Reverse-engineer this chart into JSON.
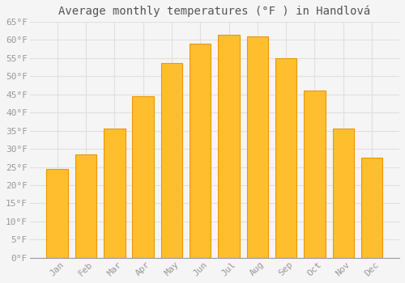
{
  "title": "Average monthly temperatures (°F ) in Handlová",
  "months": [
    "Jan",
    "Feb",
    "Mar",
    "Apr",
    "May",
    "Jun",
    "Jul",
    "Aug",
    "Sep",
    "Oct",
    "Nov",
    "Dec"
  ],
  "values": [
    24.5,
    28.5,
    35.5,
    44.5,
    53.5,
    59.0,
    61.5,
    61.0,
    55.0,
    46.0,
    35.5,
    27.5
  ],
  "bar_color": "#FFBE2D",
  "bar_edge_color": "#E8980A",
  "background_color": "#F5F5F5",
  "plot_bg_color": "#F5F5F5",
  "grid_color": "#E0E0E0",
  "text_color": "#999999",
  "title_color": "#555555",
  "ylim": [
    0,
    65
  ],
  "yticks": [
    0,
    5,
    10,
    15,
    20,
    25,
    30,
    35,
    40,
    45,
    50,
    55,
    60,
    65
  ],
  "title_fontsize": 10,
  "tick_fontsize": 8,
  "bar_width": 0.75
}
